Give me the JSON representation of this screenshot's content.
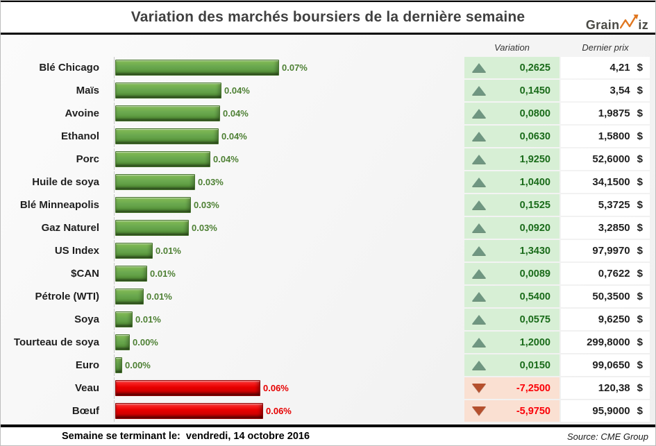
{
  "header": {
    "title": "Variation des marchés boursiers de la dernière semaine",
    "logo": {
      "text_left": "Grain",
      "text_right": "iz"
    }
  },
  "table": {
    "columns": {
      "variation": "Variation",
      "price": "Dernier prix"
    }
  },
  "footer": {
    "left": "Semaine se terminant le:  vendredi, 14 octobre 2016",
    "source": "Source: CME Group"
  },
  "colors": {
    "accent-green": "#6aa84f",
    "accent-red": "#e60000",
    "bar-label-green": "#4e8034",
    "bar-label-red": "#e60000",
    "var-up-bg": "#d7efd5",
    "var-down-bg": "#fae0d2",
    "var-up-text": "#1a6b1a",
    "var-down-text": "#fb0007",
    "tri-up": "#6f9681",
    "tri-down": "#b5502d",
    "logo-orange": "#e0761f",
    "title-color": "#404040"
  },
  "chart_data": {
    "type": "bar",
    "orientation": "horizontal",
    "title": "Variation des marchés boursiers de la dernière semaine",
    "xlabel": "",
    "ylabel": "",
    "legend": false,
    "grid": false,
    "source": "CME Group",
    "week_ending": "vendredi, 14 octobre 2016",
    "rows": [
      {
        "label": "Blé Chicago",
        "bar_label": "0.07%",
        "bar_fraction": 1.0,
        "direction": "up",
        "variation": "0,2625",
        "variation_value": 0.2625,
        "price": "4,21",
        "price_value": 4.21,
        "currency": "$"
      },
      {
        "label": "Maïs",
        "bar_label": "0.04%",
        "bar_fraction": 0.65,
        "direction": "up",
        "variation": "0,1450",
        "variation_value": 0.145,
        "price": "3,54",
        "price_value": 3.54,
        "currency": "$"
      },
      {
        "label": "Avoine",
        "bar_label": "0.04%",
        "bar_fraction": 0.64,
        "direction": "up",
        "variation": "0,0800",
        "variation_value": 0.08,
        "price": "1,9875",
        "price_value": 1.9875,
        "currency": "$"
      },
      {
        "label": "Ethanol",
        "bar_label": "0.04%",
        "bar_fraction": 0.633,
        "direction": "up",
        "variation": "0,0630",
        "variation_value": 0.063,
        "price": "1,5800",
        "price_value": 1.58,
        "currency": "$"
      },
      {
        "label": "Porc",
        "bar_label": "0.04%",
        "bar_fraction": 0.58,
        "direction": "up",
        "variation": "1,9250",
        "variation_value": 1.925,
        "price": "52,6000",
        "price_value": 52.6,
        "currency": "$"
      },
      {
        "label": "Huile de soya",
        "bar_label": "0.03%",
        "bar_fraction": 0.487,
        "direction": "up",
        "variation": "1,0400",
        "variation_value": 1.04,
        "price": "34,1500",
        "price_value": 34.15,
        "currency": "$"
      },
      {
        "label": "Blé Minneapolis",
        "bar_label": "0.03%",
        "bar_fraction": 0.462,
        "direction": "up",
        "variation": "0,1525",
        "variation_value": 0.1525,
        "price": "5,3725",
        "price_value": 5.3725,
        "currency": "$"
      },
      {
        "label": "Gaz Naturel",
        "bar_label": "0.03%",
        "bar_fraction": 0.449,
        "direction": "up",
        "variation": "0,0920",
        "variation_value": 0.092,
        "price": "3,2850",
        "price_value": 3.285,
        "currency": "$"
      },
      {
        "label": "US Index",
        "bar_label": "0.01%",
        "bar_fraction": 0.229,
        "direction": "up",
        "variation": "1,3430",
        "variation_value": 1.343,
        "price": "97,9970",
        "price_value": 97.997,
        "currency": "$"
      },
      {
        "label": "$CAN",
        "bar_label": "0.01%",
        "bar_fraction": 0.195,
        "direction": "up",
        "variation": "0,0089",
        "variation_value": 0.0089,
        "price": "0,7622",
        "price_value": 0.7622,
        "currency": "$"
      },
      {
        "label": "Pétrole (WTI)",
        "bar_label": "0.01%",
        "bar_fraction": 0.174,
        "direction": "up",
        "variation": "0,5400",
        "variation_value": 0.54,
        "price": "50,3500",
        "price_value": 50.35,
        "currency": "$"
      },
      {
        "label": "Soya",
        "bar_label": "0.01%",
        "bar_fraction": 0.106,
        "direction": "up",
        "variation": "0,0575",
        "variation_value": 0.0575,
        "price": "9,6250",
        "price_value": 9.625,
        "currency": "$"
      },
      {
        "label": "Tourteau de soya",
        "bar_label": "0.00%",
        "bar_fraction": 0.089,
        "direction": "up",
        "variation": "1,2000",
        "variation_value": 1.2,
        "price": "299,8000",
        "price_value": 299.8,
        "currency": "$"
      },
      {
        "label": "Euro",
        "bar_label": "0.00%",
        "bar_fraction": 0.042,
        "direction": "up",
        "variation": "0,0150",
        "variation_value": 0.015,
        "price": "99,0650",
        "price_value": 99.065,
        "currency": "$"
      },
      {
        "label": "Veau",
        "bar_label": "0.06%",
        "bar_fraction": 0.885,
        "direction": "down",
        "variation": "-7,2500",
        "variation_value": -7.25,
        "price": "120,38",
        "price_value": 120.38,
        "currency": "$"
      },
      {
        "label": "Bœuf",
        "bar_label": "0.06%",
        "bar_fraction": 0.902,
        "direction": "down",
        "variation": "-5,9750",
        "variation_value": -5.975,
        "price": "95,9000",
        "price_value": 95.9,
        "currency": "$"
      }
    ]
  }
}
